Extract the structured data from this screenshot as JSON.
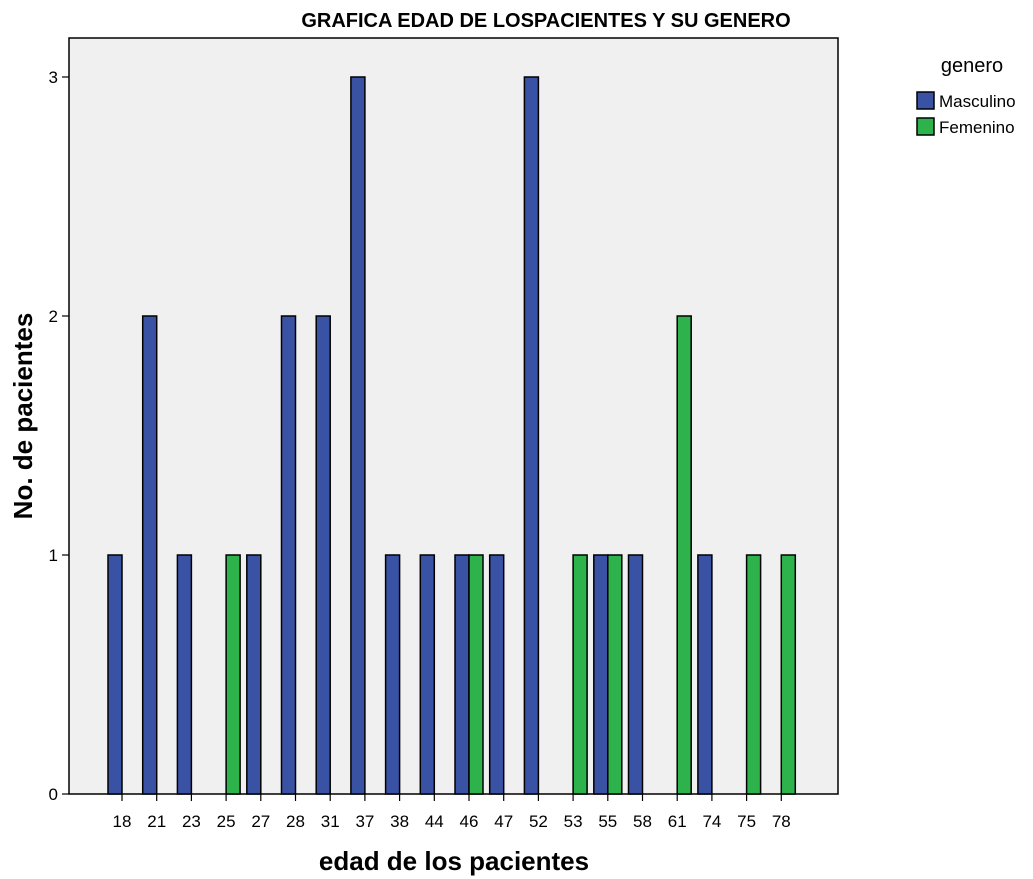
{
  "chart_data": {
    "type": "bar",
    "title": "GRAFICA EDAD DE LOSPACIENTES Y SU GENERO",
    "xlabel": "edad de los pacientes",
    "ylabel": "No. de pacientes",
    "categories": [
      "18",
      "21",
      "23",
      "25",
      "27",
      "28",
      "31",
      "37",
      "38",
      "44",
      "46",
      "47",
      "52",
      "53",
      "55",
      "58",
      "61",
      "74",
      "75",
      "78"
    ],
    "series": [
      {
        "name": "Masculino",
        "color": "#3a52a4",
        "values": [
          1,
          2,
          1,
          0,
          1,
          2,
          2,
          3,
          1,
          1,
          1,
          1,
          3,
          0,
          1,
          1,
          0,
          1,
          0,
          0
        ]
      },
      {
        "name": "Femenino",
        "color": "#2eb34c",
        "values": [
          0,
          0,
          0,
          1,
          0,
          0,
          0,
          0,
          0,
          0,
          1,
          0,
          0,
          1,
          1,
          0,
          2,
          0,
          1,
          1
        ]
      }
    ],
    "ylim": [
      0,
      3
    ],
    "yticks": [
      "0",
      "1",
      "2",
      "3"
    ],
    "legend_title": "genero",
    "legend_position": "top-right",
    "grid": false,
    "plot_background": "#f0f0f0"
  }
}
